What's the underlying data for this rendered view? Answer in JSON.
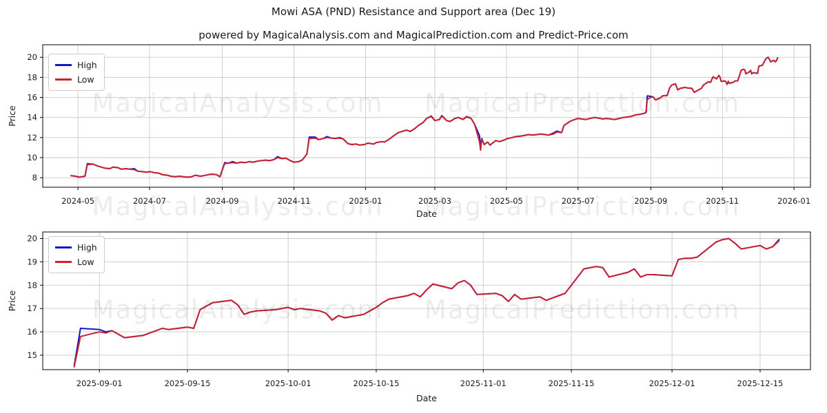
{
  "figure": {
    "title": "Mowi ASA (PND) Resistance and Support area (Dec 19)",
    "subtitle": "powered by MagicalAnalysis.com and MagicalPrediction.com and Predict-Price.com"
  },
  "watermarks": {
    "analysis": "MagicalAnalysis.com",
    "prediction": "MagicalPrediction.com"
  },
  "colors": {
    "high": "#1316c8",
    "low": "#cb2130",
    "grid": "#c9c9c9",
    "spine": "#000000",
    "text": "#1a1a1a"
  },
  "chart_data": [
    {
      "type": "line",
      "xlabel": "Date",
      "ylabel": "Price",
      "grid": true,
      "legend_position": "upper-left",
      "xlim": [
        "2024-04-01",
        "2026-01-15"
      ],
      "ylim": [
        7.05,
        21.25
      ],
      "y_ticks": [
        8,
        10,
        12,
        14,
        16,
        18,
        20
      ],
      "x_ticks": [
        {
          "date": "2024-05-01",
          "label": "2024-05"
        },
        {
          "date": "2024-07-01",
          "label": "2024-07"
        },
        {
          "date": "2024-09-01",
          "label": "2024-09"
        },
        {
          "date": "2024-11-01",
          "label": "2024-11"
        },
        {
          "date": "2025-01-01",
          "label": "2025-01"
        },
        {
          "date": "2025-03-01",
          "label": "2025-03"
        },
        {
          "date": "2025-05-01",
          "label": "2025-05"
        },
        {
          "date": "2025-07-01",
          "label": "2025-07"
        },
        {
          "date": "2025-09-01",
          "label": "2025-09"
        },
        {
          "date": "2025-11-01",
          "label": "2025-11"
        },
        {
          "date": "2026-01-01",
          "label": "2026-01"
        }
      ],
      "dates": [
        "2024-04-25",
        "2024-04-29",
        "2024-05-02",
        "2024-05-07",
        "2024-05-09",
        "2024-05-14",
        "2024-05-17",
        "2024-05-21",
        "2024-05-24",
        "2024-05-28",
        "2024-05-31",
        "2024-06-04",
        "2024-06-07",
        "2024-06-11",
        "2024-06-14",
        "2024-06-18",
        "2024-06-21",
        "2024-06-25",
        "2024-06-28",
        "2024-07-02",
        "2024-07-05",
        "2024-07-09",
        "2024-07-12",
        "2024-07-16",
        "2024-07-19",
        "2024-07-23",
        "2024-07-26",
        "2024-07-30",
        "2024-08-02",
        "2024-08-06",
        "2024-08-09",
        "2024-08-13",
        "2024-08-16",
        "2024-08-20",
        "2024-08-23",
        "2024-08-27",
        "2024-08-30",
        "2024-09-03",
        "2024-09-06",
        "2024-09-10",
        "2024-09-13",
        "2024-09-17",
        "2024-09-20",
        "2024-09-24",
        "2024-09-27",
        "2024-10-01",
        "2024-10-04",
        "2024-10-08",
        "2024-10-11",
        "2024-10-15",
        "2024-10-18",
        "2024-10-22",
        "2024-10-25",
        "2024-10-29",
        "2024-11-01",
        "2024-11-05",
        "2024-11-08",
        "2024-11-12",
        "2024-11-14",
        "2024-11-19",
        "2024-11-22",
        "2024-11-26",
        "2024-11-29",
        "2024-12-03",
        "2024-12-06",
        "2024-12-10",
        "2024-12-13",
        "2024-12-17",
        "2024-12-20",
        "2024-12-24",
        "2024-12-27",
        "2024-12-31",
        "2025-01-03",
        "2025-01-08",
        "2025-01-10",
        "2025-01-15",
        "2025-01-17",
        "2025-01-22",
        "2025-01-24",
        "2025-01-29",
        "2025-02-01",
        "2025-02-05",
        "2025-02-08",
        "2025-02-12",
        "2025-02-15",
        "2025-02-19",
        "2025-02-22",
        "2025-02-26",
        "2025-03-01",
        "2025-03-05",
        "2025-03-07",
        "2025-03-11",
        "2025-03-14",
        "2025-03-18",
        "2025-03-21",
        "2025-03-25",
        "2025-03-28",
        "2025-04-01",
        "2025-04-04",
        "2025-04-08",
        "2025-04-09",
        "2025-04-10",
        "2025-04-12",
        "2025-04-15",
        "2025-04-17",
        "2025-04-22",
        "2025-04-25",
        "2025-04-29",
        "2025-05-02",
        "2025-05-06",
        "2025-05-09",
        "2025-05-13",
        "2025-05-16",
        "2025-05-20",
        "2025-05-23",
        "2025-05-27",
        "2025-05-30",
        "2025-06-03",
        "2025-06-06",
        "2025-06-10",
        "2025-06-13",
        "2025-06-17",
        "2025-06-19",
        "2025-06-24",
        "2025-06-27",
        "2025-07-01",
        "2025-07-04",
        "2025-07-08",
        "2025-07-11",
        "2025-07-15",
        "2025-07-18",
        "2025-07-22",
        "2025-07-25",
        "2025-07-29",
        "2025-08-01",
        "2025-08-05",
        "2025-08-08",
        "2025-08-12",
        "2025-08-15",
        "2025-08-19",
        "2025-08-22",
        "2025-08-26",
        "2025-08-28",
        "2025-08-29",
        "2025-09-01",
        "2025-09-03",
        "2025-09-05",
        "2025-09-09",
        "2025-09-11",
        "2025-09-15",
        "2025-09-17",
        "2025-09-19",
        "2025-09-22",
        "2025-09-24",
        "2025-09-26",
        "2025-09-30",
        "2025-10-02",
        "2025-10-06",
        "2025-10-08",
        "2025-10-10",
        "2025-10-14",
        "2025-10-16",
        "2025-10-20",
        "2025-10-22",
        "2025-10-23",
        "2025-10-24",
        "2025-10-27",
        "2025-10-29",
        "2025-10-30",
        "2025-10-31",
        "2025-11-03",
        "2025-11-04",
        "2025-11-05",
        "2025-11-06",
        "2025-11-07",
        "2025-11-10",
        "2025-11-12",
        "2025-11-14",
        "2025-11-17",
        "2025-11-19",
        "2025-11-20",
        "2025-11-21",
        "2025-11-24",
        "2025-11-25",
        "2025-11-26",
        "2025-11-27",
        "2025-11-28",
        "2025-12-01",
        "2025-12-02",
        "2025-12-03",
        "2025-12-05",
        "2025-12-08",
        "2025-12-09",
        "2025-12-10",
        "2025-12-11",
        "2025-12-12",
        "2025-12-15",
        "2025-12-16",
        "2025-12-17",
        "2025-12-18"
      ],
      "series": [
        {
          "name": "High",
          "color_key": "high",
          "values": [
            8.2,
            8.15,
            8.05,
            8.15,
            9.4,
            9.35,
            9.2,
            9.05,
            8.95,
            8.9,
            9.05,
            9.0,
            8.85,
            8.9,
            8.85,
            8.9,
            8.65,
            8.6,
            8.55,
            8.6,
            8.5,
            8.45,
            8.3,
            8.25,
            8.15,
            8.1,
            8.15,
            8.1,
            8.05,
            8.1,
            8.25,
            8.15,
            8.2,
            8.3,
            8.35,
            8.3,
            8.1,
            9.5,
            9.45,
            9.6,
            9.45,
            9.55,
            9.5,
            9.6,
            9.55,
            9.65,
            9.7,
            9.75,
            9.7,
            9.8,
            10.1,
            9.9,
            9.95,
            9.7,
            9.55,
            9.6,
            9.75,
            10.35,
            12.05,
            12.05,
            11.8,
            11.9,
            12.1,
            11.95,
            11.9,
            12.0,
            11.85,
            11.4,
            11.3,
            11.35,
            11.25,
            11.3,
            11.45,
            11.35,
            11.5,
            11.6,
            11.55,
            11.9,
            12.1,
            12.5,
            12.6,
            12.75,
            12.6,
            12.9,
            13.2,
            13.5,
            13.9,
            14.15,
            13.7,
            13.8,
            14.2,
            13.7,
            13.6,
            13.9,
            14.0,
            13.8,
            14.1,
            13.9,
            13.3,
            12.2,
            11.1,
            11.9,
            11.3,
            11.55,
            11.25,
            11.7,
            11.6,
            11.75,
            11.9,
            12.0,
            12.1,
            12.15,
            12.2,
            12.3,
            12.25,
            12.3,
            12.35,
            12.3,
            12.25,
            12.45,
            12.65,
            12.5,
            13.2,
            13.6,
            13.75,
            13.9,
            13.85,
            13.8,
            13.9,
            14.0,
            13.95,
            13.85,
            13.9,
            13.85,
            13.8,
            13.9,
            14.0,
            14.05,
            14.1,
            14.25,
            14.3,
            14.4,
            14.5,
            16.15,
            16.1,
            16.05,
            15.75,
            15.95,
            16.15,
            16.2,
            16.95,
            17.25,
            17.35,
            16.75,
            16.9,
            17.0,
            16.95,
            16.9,
            16.5,
            16.65,
            16.9,
            17.25,
            17.55,
            17.5,
            17.8,
            18.05,
            17.85,
            18.2,
            18.0,
            17.6,
            17.65,
            17.55,
            17.3,
            17.6,
            17.4,
            17.5,
            17.65,
            17.65,
            18.7,
            18.8,
            18.75,
            18.35,
            18.55,
            18.7,
            18.35,
            18.45,
            18.45,
            18.4,
            19.1,
            19.15,
            19.2,
            19.85,
            19.95,
            20.0,
            19.8,
            19.55,
            19.7,
            19.55,
            19.65,
            19.95
          ]
        },
        {
          "name": "Low",
          "color_key": "low",
          "values": [
            8.2,
            8.15,
            8.05,
            8.15,
            9.3,
            9.35,
            9.2,
            9.05,
            8.95,
            8.9,
            9.05,
            9.0,
            8.85,
            8.9,
            8.85,
            8.8,
            8.65,
            8.6,
            8.55,
            8.6,
            8.5,
            8.45,
            8.3,
            8.25,
            8.15,
            8.1,
            8.15,
            8.1,
            8.05,
            8.1,
            8.25,
            8.15,
            8.2,
            8.3,
            8.35,
            8.3,
            8.1,
            9.4,
            9.45,
            9.5,
            9.45,
            9.55,
            9.5,
            9.6,
            9.55,
            9.65,
            9.7,
            9.75,
            9.7,
            9.8,
            10.0,
            9.9,
            9.95,
            9.7,
            9.55,
            9.6,
            9.75,
            10.35,
            11.9,
            11.95,
            11.8,
            11.9,
            12.0,
            11.95,
            11.9,
            11.95,
            11.85,
            11.4,
            11.3,
            11.35,
            11.25,
            11.3,
            11.45,
            11.35,
            11.5,
            11.6,
            11.55,
            11.9,
            12.1,
            12.5,
            12.6,
            12.75,
            12.6,
            12.9,
            13.2,
            13.5,
            13.9,
            14.1,
            13.7,
            13.8,
            14.15,
            13.7,
            13.6,
            13.9,
            14.0,
            13.8,
            14.05,
            13.9,
            13.3,
            11.6,
            10.75,
            11.9,
            11.3,
            11.55,
            11.25,
            11.7,
            11.6,
            11.75,
            11.9,
            12.0,
            12.1,
            12.15,
            12.2,
            12.3,
            12.25,
            12.3,
            12.35,
            12.3,
            12.25,
            12.35,
            12.55,
            12.5,
            13.2,
            13.6,
            13.75,
            13.9,
            13.85,
            13.8,
            13.9,
            14.0,
            13.95,
            13.85,
            13.9,
            13.85,
            13.8,
            13.9,
            14.0,
            14.05,
            14.1,
            14.25,
            14.3,
            14.4,
            14.5,
            15.8,
            16.0,
            16.05,
            15.75,
            15.95,
            16.15,
            16.2,
            16.95,
            17.25,
            17.35,
            16.75,
            16.9,
            17.0,
            16.95,
            16.9,
            16.5,
            16.65,
            16.9,
            17.25,
            17.55,
            17.5,
            17.8,
            18.05,
            17.85,
            18.2,
            18.0,
            17.6,
            17.65,
            17.55,
            17.3,
            17.6,
            17.4,
            17.5,
            17.65,
            17.65,
            18.7,
            18.8,
            18.75,
            18.35,
            18.55,
            18.7,
            18.35,
            18.45,
            18.45,
            18.4,
            19.1,
            19.15,
            19.2,
            19.85,
            19.95,
            20.0,
            19.8,
            19.55,
            19.7,
            19.55,
            19.65,
            19.9
          ]
        }
      ]
    },
    {
      "type": "line",
      "xlabel": "Date",
      "ylabel": "Price",
      "grid": true,
      "legend_position": "upper-left",
      "xlim": [
        "2025-08-23",
        "2025-12-23"
      ],
      "ylim": [
        14.38,
        20.28
      ],
      "y_ticks": [
        15,
        16,
        17,
        18,
        19,
        20
      ],
      "x_ticks": [
        {
          "date": "2025-09-01",
          "label": "2025-09-01"
        },
        {
          "date": "2025-09-15",
          "label": "2025-09-15"
        },
        {
          "date": "2025-10-01",
          "label": "2025-10-01"
        },
        {
          "date": "2025-10-15",
          "label": "2025-10-15"
        },
        {
          "date": "2025-11-01",
          "label": "2025-11-01"
        },
        {
          "date": "2025-11-15",
          "label": "2025-11-15"
        },
        {
          "date": "2025-12-01",
          "label": "2025-12-01"
        },
        {
          "date": "2025-12-15",
          "label": "2025-12-15"
        }
      ],
      "dates": [
        "2025-08-28",
        "2025-08-29",
        "2025-09-01",
        "2025-09-02",
        "2025-09-03",
        "2025-09-04",
        "2025-09-05",
        "2025-09-08",
        "2025-09-09",
        "2025-09-10",
        "2025-09-11",
        "2025-09-12",
        "2025-09-15",
        "2025-09-16",
        "2025-09-17",
        "2025-09-18",
        "2025-09-19",
        "2025-09-22",
        "2025-09-23",
        "2025-09-24",
        "2025-09-25",
        "2025-09-26",
        "2025-09-29",
        "2025-09-30",
        "2025-10-01",
        "2025-10-02",
        "2025-10-03",
        "2025-10-06",
        "2025-10-07",
        "2025-10-08",
        "2025-10-09",
        "2025-10-10",
        "2025-10-13",
        "2025-10-14",
        "2025-10-15",
        "2025-10-16",
        "2025-10-17",
        "2025-10-20",
        "2025-10-21",
        "2025-10-22",
        "2025-10-23",
        "2025-10-24",
        "2025-10-27",
        "2025-10-28",
        "2025-10-29",
        "2025-10-30",
        "2025-10-31",
        "2025-11-03",
        "2025-11-04",
        "2025-11-05",
        "2025-11-06",
        "2025-11-07",
        "2025-11-10",
        "2025-11-11",
        "2025-11-12",
        "2025-11-13",
        "2025-11-14",
        "2025-11-17",
        "2025-11-18",
        "2025-11-19",
        "2025-11-20",
        "2025-11-21",
        "2025-11-24",
        "2025-11-25",
        "2025-11-26",
        "2025-11-27",
        "2025-11-28",
        "2025-12-01",
        "2025-12-02",
        "2025-12-03",
        "2025-12-04",
        "2025-12-05",
        "2025-12-08",
        "2025-12-09",
        "2025-12-10",
        "2025-12-11",
        "2025-12-12",
        "2025-12-15",
        "2025-12-16",
        "2025-12-17",
        "2025-12-18"
      ],
      "series": [
        {
          "name": "High",
          "color_key": "high",
          "values": [
            14.55,
            16.15,
            16.1,
            16.0,
            16.05,
            15.9,
            15.75,
            15.85,
            15.95,
            16.05,
            16.15,
            16.1,
            16.2,
            16.15,
            16.95,
            17.1,
            17.25,
            17.35,
            17.15,
            16.75,
            16.85,
            16.9,
            16.95,
            17.0,
            17.05,
            16.95,
            17.0,
            16.9,
            16.8,
            16.5,
            16.7,
            16.6,
            16.75,
            16.9,
            17.05,
            17.25,
            17.4,
            17.55,
            17.65,
            17.5,
            17.8,
            18.05,
            17.85,
            18.1,
            18.2,
            18.0,
            17.6,
            17.65,
            17.55,
            17.3,
            17.6,
            17.4,
            17.5,
            17.35,
            17.45,
            17.55,
            17.65,
            18.7,
            18.75,
            18.8,
            18.75,
            18.35,
            18.55,
            18.7,
            18.35,
            18.45,
            18.45,
            18.4,
            19.1,
            19.15,
            19.15,
            19.2,
            19.85,
            19.95,
            20.0,
            19.8,
            19.55,
            19.7,
            19.55,
            19.65,
            19.95
          ]
        },
        {
          "name": "Low",
          "color_key": "low",
          "values": [
            14.5,
            15.8,
            16.0,
            15.95,
            16.05,
            15.9,
            15.75,
            15.85,
            15.95,
            16.05,
            16.15,
            16.1,
            16.2,
            16.15,
            16.95,
            17.1,
            17.25,
            17.35,
            17.15,
            16.75,
            16.85,
            16.9,
            16.95,
            17.0,
            17.05,
            16.95,
            17.0,
            16.9,
            16.8,
            16.5,
            16.7,
            16.6,
            16.75,
            16.9,
            17.05,
            17.25,
            17.4,
            17.55,
            17.65,
            17.5,
            17.8,
            18.05,
            17.85,
            18.1,
            18.2,
            18.0,
            17.6,
            17.65,
            17.55,
            17.3,
            17.6,
            17.4,
            17.5,
            17.35,
            17.45,
            17.55,
            17.65,
            18.7,
            18.75,
            18.8,
            18.75,
            18.35,
            18.55,
            18.7,
            18.35,
            18.45,
            18.45,
            18.4,
            19.1,
            19.15,
            19.15,
            19.2,
            19.85,
            19.95,
            20.0,
            19.8,
            19.55,
            19.7,
            19.55,
            19.65,
            19.9
          ]
        }
      ]
    }
  ]
}
